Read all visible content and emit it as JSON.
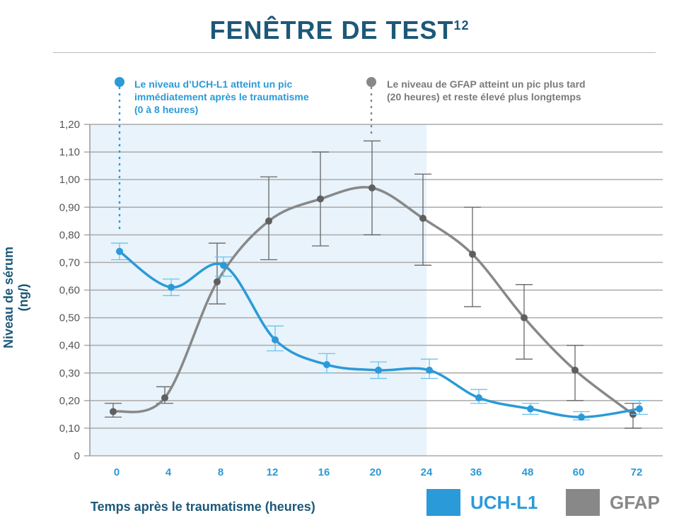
{
  "title": "FENÊTRE DE TEST",
  "title_superscript": "12",
  "annotations": [
    {
      "lines": [
        "Le niveau d’UCH-L1 atteint un pic",
        "immédiatement après le traumatisme",
        "(0 à 8 heures)"
      ],
      "color": "#2b9ad8"
    },
    {
      "lines": [
        "Le niveau de GFAP atteint un pic plus tard",
        "(20 heures) et reste élevé plus longtemps"
      ],
      "color": "#7a7a7a"
    }
  ],
  "chart_data": {
    "type": "line",
    "xlabel": "Temps après le traumatisme (heures)",
    "ylabel": "Niveau de sérum (ng/)",
    "categories": [
      "0",
      "4",
      "8",
      "12",
      "16",
      "20",
      "24",
      "36",
      "48",
      "60",
      "72"
    ],
    "y_ticks": [
      "0",
      "0,10",
      "0,20",
      "0,30",
      "0,40",
      "0,50",
      "0,60",
      "0,70",
      "0,80",
      "0,90",
      "1,00",
      "1,10",
      "1,20"
    ],
    "ylim": [
      0,
      1.2
    ],
    "grid": true,
    "shaded_window": {
      "from": "0",
      "to": "24",
      "color": "#e8f3fb"
    },
    "legend_placement": "bottom-right",
    "series": [
      {
        "name": "UCH-L1",
        "color": "#2b9ad8",
        "values": [
          0.74,
          0.61,
          0.69,
          0.42,
          0.33,
          0.31,
          0.31,
          0.21,
          0.17,
          0.14,
          0.17
        ],
        "err_low": [
          0.71,
          0.58,
          0.65,
          0.38,
          0.3,
          0.28,
          0.28,
          0.19,
          0.15,
          0.13,
          0.15
        ],
        "err_high": [
          0.77,
          0.64,
          0.72,
          0.47,
          0.37,
          0.34,
          0.35,
          0.24,
          0.19,
          0.16,
          0.2
        ]
      },
      {
        "name": "GFAP",
        "color": "#888888",
        "point_color": "#5f5f5f",
        "values": [
          0.16,
          0.21,
          0.63,
          0.85,
          0.93,
          0.97,
          0.86,
          0.73,
          0.5,
          0.31,
          0.15
        ],
        "err_low": [
          0.14,
          0.19,
          0.55,
          0.71,
          0.76,
          0.8,
          0.69,
          0.54,
          0.35,
          0.2,
          0.1
        ],
        "err_high": [
          0.19,
          0.25,
          0.77,
          1.01,
          1.1,
          1.14,
          1.02,
          0.9,
          0.62,
          0.4,
          0.19
        ]
      }
    ]
  }
}
